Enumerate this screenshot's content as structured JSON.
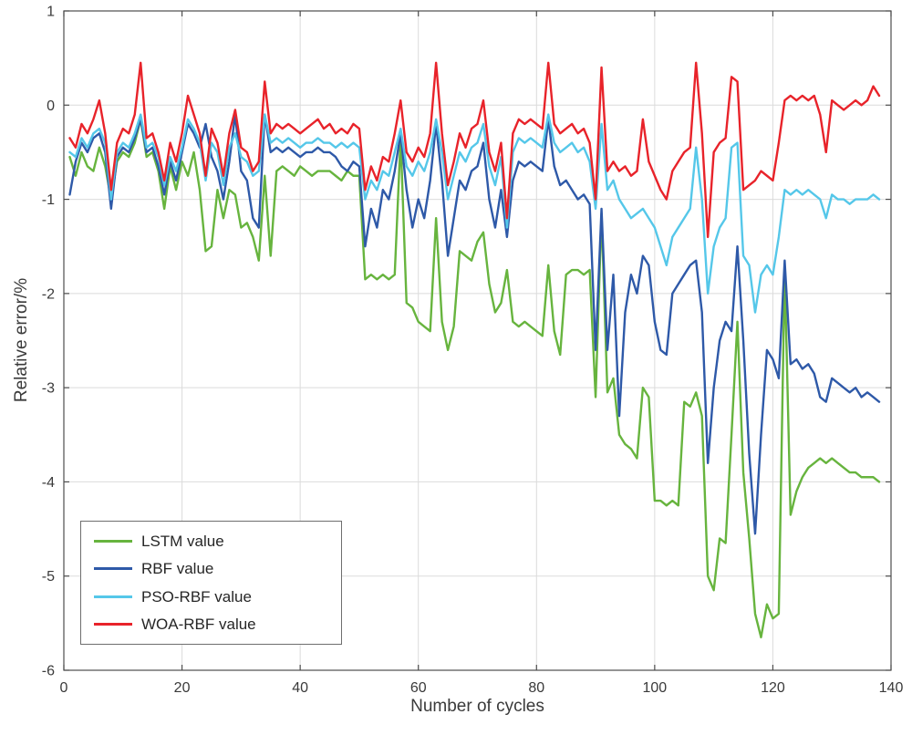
{
  "figure": {
    "xlabel": "Number of cycles",
    "ylabel": "Relative error/%"
  },
  "colors": {
    "grid": "#dbdbdb",
    "axis": "#4d4d4d",
    "tick_label": "#3a3a3a",
    "background": "#ffffff"
  },
  "chart_data": {
    "type": "line",
    "title": "",
    "xlabel": "Number of cycles",
    "ylabel": "Relative error/%",
    "xlim": [
      0,
      140
    ],
    "ylim": [
      -6,
      1
    ],
    "x_ticks": [
      0,
      20,
      40,
      60,
      80,
      100,
      120,
      140
    ],
    "y_ticks": [
      -6,
      -5,
      -4,
      -3,
      -2,
      -1,
      0,
      1
    ],
    "grid": true,
    "legend_position": "bottom-left",
    "x_start": 1,
    "series": [
      {
        "name": "LSTM value",
        "color": "#67b43e",
        "values": [
          -0.55,
          -0.75,
          -0.5,
          -0.65,
          -0.7,
          -0.45,
          -0.65,
          -1.0,
          -0.6,
          -0.5,
          -0.55,
          -0.4,
          -0.15,
          -0.55,
          -0.5,
          -0.7,
          -1.1,
          -0.65,
          -0.9,
          -0.6,
          -0.75,
          -0.5,
          -0.9,
          -1.55,
          -1.5,
          -0.9,
          -1.2,
          -0.9,
          -0.95,
          -1.3,
          -1.25,
          -1.4,
          -1.65,
          -0.75,
          -1.6,
          -0.7,
          -0.65,
          -0.7,
          -0.75,
          -0.65,
          -0.7,
          -0.75,
          -0.7,
          -0.7,
          -0.7,
          -0.75,
          -0.8,
          -0.7,
          -0.75,
          -0.75,
          -1.85,
          -1.8,
          -1.85,
          -1.8,
          -1.85,
          -1.8,
          -0.35,
          -2.1,
          -2.15,
          -2.3,
          -2.35,
          -2.4,
          -1.2,
          -2.3,
          -2.6,
          -2.35,
          -1.55,
          -1.6,
          -1.65,
          -1.45,
          -1.35,
          -1.9,
          -2.2,
          -2.1,
          -1.75,
          -2.3,
          -2.35,
          -2.3,
          -2.35,
          -2.4,
          -2.45,
          -1.7,
          -2.4,
          -2.65,
          -1.8,
          -1.75,
          -1.75,
          -1.8,
          -1.75,
          -3.1,
          -1.15,
          -3.05,
          -2.9,
          -3.5,
          -3.6,
          -3.65,
          -3.75,
          -3.0,
          -3.1,
          -4.2,
          -4.2,
          -4.25,
          -4.2,
          -4.25,
          -3.15,
          -3.2,
          -3.05,
          -3.3,
          -5.0,
          -5.15,
          -4.6,
          -4.65,
          -3.5,
          -2.3,
          -3.9,
          -4.6,
          -5.4,
          -5.65,
          -5.3,
          -5.45,
          -5.4,
          -1.75,
          -4.35,
          -4.1,
          -3.95,
          -3.85,
          -3.8,
          -3.75,
          -3.8,
          -3.75,
          -3.8,
          -3.85,
          -3.9,
          -3.9,
          -3.95,
          -3.95,
          -3.95,
          -4.0
        ]
      },
      {
        "name": "RBF value",
        "color": "#2e59a8",
        "values": [
          -0.95,
          -0.6,
          -0.4,
          -0.5,
          -0.35,
          -0.3,
          -0.5,
          -1.1,
          -0.55,
          -0.45,
          -0.5,
          -0.35,
          -0.15,
          -0.5,
          -0.45,
          -0.65,
          -0.95,
          -0.6,
          -0.8,
          -0.5,
          -0.2,
          -0.3,
          -0.45,
          -0.2,
          -0.55,
          -0.7,
          -1.0,
          -0.6,
          -0.1,
          -0.7,
          -0.8,
          -1.2,
          -1.3,
          -0.1,
          -0.5,
          -0.45,
          -0.5,
          -0.45,
          -0.5,
          -0.55,
          -0.5,
          -0.5,
          -0.45,
          -0.5,
          -0.5,
          -0.55,
          -0.65,
          -0.7,
          -0.6,
          -0.65,
          -1.5,
          -1.1,
          -1.3,
          -0.9,
          -1.0,
          -0.7,
          -0.3,
          -0.9,
          -1.3,
          -1.0,
          -1.2,
          -0.8,
          -0.2,
          -0.8,
          -1.6,
          -1.2,
          -0.8,
          -0.9,
          -0.7,
          -0.65,
          -0.4,
          -1.0,
          -1.3,
          -0.9,
          -1.4,
          -0.8,
          -0.6,
          -0.65,
          -0.6,
          -0.65,
          -0.7,
          -0.15,
          -0.65,
          -0.85,
          -0.8,
          -0.9,
          -1.0,
          -0.95,
          -1.05,
          -2.6,
          -1.1,
          -2.6,
          -1.8,
          -3.3,
          -2.2,
          -1.8,
          -2.0,
          -1.6,
          -1.7,
          -2.3,
          -2.6,
          -2.65,
          -2.0,
          -1.9,
          -1.8,
          -1.7,
          -1.65,
          -2.2,
          -3.8,
          -3.0,
          -2.5,
          -2.3,
          -2.4,
          -1.5,
          -2.5,
          -3.7,
          -4.55,
          -3.5,
          -2.6,
          -2.7,
          -2.9,
          -1.65,
          -2.75,
          -2.7,
          -2.8,
          -2.75,
          -2.85,
          -3.1,
          -3.15,
          -2.9,
          -2.95,
          -3.0,
          -3.05,
          -3.0,
          -3.1,
          -3.05,
          -3.1,
          -3.15
        ]
      },
      {
        "name": "PSO-RBF value",
        "color": "#55c7e9",
        "values": [
          -0.5,
          -0.55,
          -0.35,
          -0.45,
          -0.3,
          -0.25,
          -0.4,
          -1.0,
          -0.5,
          -0.4,
          -0.45,
          -0.3,
          -0.1,
          -0.45,
          -0.4,
          -0.55,
          -0.85,
          -0.55,
          -0.7,
          -0.45,
          -0.15,
          -0.25,
          -0.4,
          -0.8,
          -0.4,
          -0.5,
          -0.85,
          -0.45,
          -0.3,
          -0.55,
          -0.6,
          -0.75,
          -0.7,
          -0.1,
          -0.4,
          -0.35,
          -0.4,
          -0.35,
          -0.4,
          -0.45,
          -0.4,
          -0.4,
          -0.35,
          -0.4,
          -0.4,
          -0.45,
          -0.4,
          -0.45,
          -0.4,
          -0.45,
          -1.0,
          -0.8,
          -0.9,
          -0.7,
          -0.75,
          -0.5,
          -0.25,
          -0.65,
          -0.75,
          -0.6,
          -0.7,
          -0.5,
          -0.15,
          -0.5,
          -1.0,
          -0.75,
          -0.5,
          -0.6,
          -0.45,
          -0.4,
          -0.2,
          -0.65,
          -0.85,
          -0.55,
          -1.3,
          -0.5,
          -0.35,
          -0.4,
          -0.35,
          -0.4,
          -0.45,
          -0.1,
          -0.4,
          -0.5,
          -0.45,
          -0.4,
          -0.5,
          -0.45,
          -0.6,
          -1.1,
          -0.2,
          -0.9,
          -0.8,
          -1.0,
          -1.1,
          -1.2,
          -1.15,
          -1.1,
          -1.2,
          -1.3,
          -1.5,
          -1.7,
          -1.4,
          -1.3,
          -1.2,
          -1.1,
          -0.45,
          -1.0,
          -2.0,
          -1.5,
          -1.3,
          -1.2,
          -0.45,
          -0.4,
          -1.6,
          -1.7,
          -2.2,
          -1.8,
          -1.7,
          -1.8,
          -1.4,
          -0.9,
          -0.95,
          -0.9,
          -0.95,
          -0.9,
          -0.95,
          -1.0,
          -1.2,
          -0.95,
          -1.0,
          -1.0,
          -1.05,
          -1.0,
          -1.0,
          -1.0,
          -0.95,
          -1.0
        ]
      },
      {
        "name": "WOA-RBF value",
        "color": "#e8232a",
        "values": [
          -0.35,
          -0.45,
          -0.2,
          -0.3,
          -0.15,
          0.05,
          -0.3,
          -0.9,
          -0.4,
          -0.25,
          -0.3,
          -0.1,
          0.45,
          -0.35,
          -0.3,
          -0.5,
          -0.8,
          -0.4,
          -0.6,
          -0.3,
          0.1,
          -0.1,
          -0.3,
          -0.75,
          -0.25,
          -0.4,
          -0.75,
          -0.3,
          -0.05,
          -0.45,
          -0.5,
          -0.7,
          -0.6,
          0.25,
          -0.3,
          -0.2,
          -0.25,
          -0.2,
          -0.25,
          -0.3,
          -0.25,
          -0.2,
          -0.15,
          -0.25,
          -0.2,
          -0.3,
          -0.25,
          -0.3,
          -0.2,
          -0.25,
          -0.9,
          -0.65,
          -0.8,
          -0.55,
          -0.6,
          -0.3,
          0.05,
          -0.5,
          -0.6,
          -0.45,
          -0.55,
          -0.3,
          0.45,
          -0.3,
          -0.85,
          -0.6,
          -0.3,
          -0.45,
          -0.25,
          -0.2,
          0.05,
          -0.5,
          -0.7,
          -0.4,
          -1.2,
          -0.3,
          -0.15,
          -0.2,
          -0.15,
          -0.2,
          -0.25,
          0.45,
          -0.2,
          -0.3,
          -0.25,
          -0.2,
          -0.3,
          -0.25,
          -0.4,
          -1.0,
          0.4,
          -0.7,
          -0.6,
          -0.7,
          -0.65,
          -0.75,
          -0.7,
          -0.15,
          -0.6,
          -0.75,
          -0.9,
          -1.0,
          -0.7,
          -0.6,
          -0.5,
          -0.45,
          0.45,
          -0.3,
          -1.4,
          -0.5,
          -0.4,
          -0.35,
          0.3,
          0.25,
          -0.9,
          -0.85,
          -0.8,
          -0.7,
          -0.75,
          -0.8,
          -0.4,
          0.05,
          0.1,
          0.05,
          0.1,
          0.05,
          0.1,
          -0.1,
          -0.5,
          0.05,
          0.0,
          -0.05,
          0.0,
          0.05,
          0.0,
          0.05,
          0.2,
          0.1
        ]
      }
    ]
  }
}
